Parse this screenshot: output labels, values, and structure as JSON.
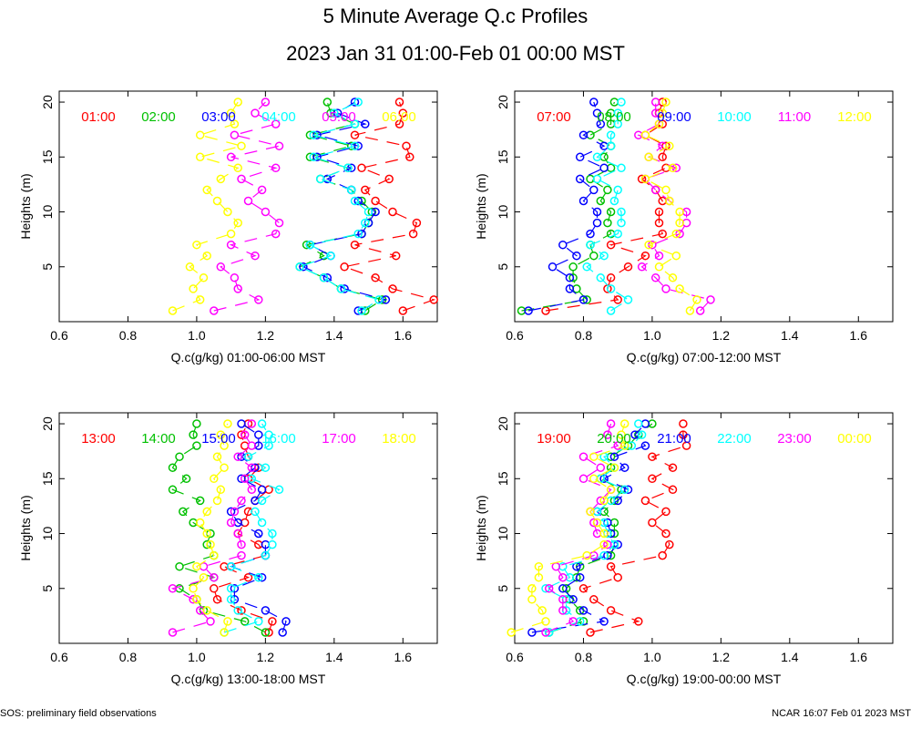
{
  "header": {
    "title": "5 Minute Average Q.c Profiles",
    "subtitle": "2023 Jan 31 01:00-Feb 01 00:00 MST"
  },
  "footer": {
    "left": "SOS: preliminary field observations",
    "right": "NCAR 16:07 Feb 01 2023 MST"
  },
  "colors": [
    "#ff0000",
    "#00c000",
    "#0000ff",
    "#00ffff",
    "#ff00ff",
    "#ffff00"
  ],
  "chart_data": [
    {
      "type": "line",
      "xlabel": "Q.c(g/kg) 01:00-06:00 MST",
      "ylabel": "Heights (m)",
      "xlim": [
        0.6,
        1.7
      ],
      "ylim": [
        0,
        21
      ],
      "xticks": [
        "0.6",
        "0.8",
        "1.0",
        "1.2",
        "1.4",
        "1.6"
      ],
      "yticks": [
        "5",
        "10",
        "15",
        "20"
      ],
      "heights": [
        1,
        2,
        3,
        4,
        5,
        6,
        7,
        8,
        9,
        10,
        11,
        12,
        13,
        14,
        15,
        16,
        17,
        18,
        19,
        20
      ],
      "series": [
        {
          "name": "01:00",
          "values": [
            1.6,
            1.69,
            1.57,
            1.52,
            1.43,
            1.58,
            1.46,
            1.63,
            1.64,
            1.57,
            1.52,
            1.49,
            1.56,
            1.48,
            1.62,
            1.61,
            1.46,
            1.59,
            1.6,
            1.59
          ]
        },
        {
          "name": "02:00",
          "values": [
            1.49,
            1.54,
            1.42,
            1.37,
            1.3,
            1.37,
            1.32,
            1.48,
            1.5,
            1.51,
            1.48,
            1.45,
            1.36,
            1.44,
            1.33,
            1.45,
            1.33,
            1.46,
            1.39,
            1.38
          ]
        },
        {
          "name": "03:00",
          "values": [
            1.47,
            1.55,
            1.43,
            1.38,
            1.31,
            1.39,
            1.33,
            1.48,
            1.5,
            1.52,
            1.47,
            1.45,
            1.38,
            1.45,
            1.35,
            1.47,
            1.35,
            1.49,
            1.41,
            1.46
          ]
        },
        {
          "name": "04:00",
          "values": [
            1.48,
            1.53,
            1.42,
            1.37,
            1.3,
            1.39,
            1.33,
            1.47,
            1.49,
            1.5,
            1.46,
            1.45,
            1.36,
            1.44,
            1.34,
            1.46,
            1.34,
            1.46,
            1.4,
            1.47
          ]
        },
        {
          "name": "05:00",
          "values": [
            1.05,
            1.18,
            1.12,
            1.11,
            1.07,
            1.17,
            1.1,
            1.23,
            1.24,
            1.2,
            1.15,
            1.19,
            1.13,
            1.23,
            1.1,
            1.24,
            1.11,
            1.23,
            1.17,
            1.2
          ]
        },
        {
          "name": "06:00",
          "values": [
            0.93,
            1.01,
            0.99,
            1.02,
            0.98,
            1.03,
            1.0,
            1.1,
            1.12,
            1.09,
            1.06,
            1.03,
            1.07,
            1.12,
            1.01,
            1.13,
            1.01,
            1.11,
            1.1,
            1.12
          ]
        }
      ],
      "legend": [
        "01:00",
        "02:00",
        "03:00",
        "04:00",
        "05:00",
        "06:00"
      ]
    },
    {
      "type": "line",
      "xlabel": "Q.c(g/kg) 07:00-12:00 MST",
      "ylabel": "Heights (m)",
      "xlim": [
        0.6,
        1.7
      ],
      "ylim": [
        0,
        21
      ],
      "xticks": [
        "0.6",
        "0.8",
        "1.0",
        "1.2",
        "1.4",
        "1.6"
      ],
      "yticks": [
        "5",
        "10",
        "15",
        "20"
      ],
      "heights": [
        1,
        2,
        3,
        4,
        5,
        6,
        7,
        8,
        9,
        10,
        11,
        12,
        13,
        14,
        15,
        16,
        17,
        18,
        19,
        20
      ],
      "series": [
        {
          "name": "07:00",
          "values": [
            0.69,
            0.9,
            0.87,
            0.88,
            0.93,
            0.98,
            0.88,
            1.03,
            1.02,
            1.02,
            1.03,
            1.01,
            0.97,
            1.04,
            1.03,
            1.04,
            0.98,
            1.03,
            1.02,
            1.03
          ]
        },
        {
          "name": "08:00",
          "values": [
            0.62,
            0.81,
            0.78,
            0.77,
            0.77,
            0.83,
            0.82,
            0.88,
            0.87,
            0.88,
            0.85,
            0.87,
            0.82,
            0.88,
            0.86,
            0.88,
            0.82,
            0.88,
            0.88,
            0.89
          ]
        },
        {
          "name": "09:00",
          "values": [
            0.64,
            0.8,
            0.76,
            0.76,
            0.71,
            0.78,
            0.74,
            0.82,
            0.84,
            0.84,
            0.8,
            0.83,
            0.79,
            0.86,
            0.79,
            0.86,
            0.8,
            0.85,
            0.84,
            0.83
          ]
        },
        {
          "name": "10:00",
          "values": [
            0.88,
            0.93,
            0.88,
            0.85,
            0.81,
            0.86,
            0.82,
            0.9,
            0.91,
            0.91,
            0.89,
            0.9,
            0.84,
            0.91,
            0.84,
            0.88,
            0.88,
            0.9,
            0.9,
            0.91
          ]
        },
        {
          "name": "11:00",
          "values": [
            1.14,
            1.17,
            1.04,
            1.01,
            0.97,
            1.02,
            1.0,
            1.08,
            1.1,
            1.1,
            1.05,
            1.01,
            0.98,
            1.07,
            0.99,
            1.03,
            0.96,
            1.02,
            1.01,
            1.01
          ]
        },
        {
          "name": "12:00",
          "values": [
            1.11,
            1.13,
            1.08,
            1.06,
            1.02,
            1.07,
            0.99,
            1.07,
            1.08,
            1.08,
            1.05,
            1.04,
            0.98,
            1.06,
            0.99,
            1.05,
            0.98,
            1.02,
            1.03,
            1.04
          ]
        }
      ],
      "legend": [
        "07:00",
        "08:00",
        "09:00",
        "10:00",
        "11:00",
        "12:00"
      ]
    },
    {
      "type": "line",
      "xlabel": "Q.c(g/kg) 13:00-18:00 MST",
      "ylabel": "Heights (m)",
      "xlim": [
        0.6,
        1.7
      ],
      "ylim": [
        0,
        21
      ],
      "xticks": [
        "0.6",
        "0.8",
        "1.0",
        "1.2",
        "1.4",
        "1.6"
      ],
      "yticks": [
        "5",
        "10",
        "15",
        "20"
      ],
      "heights": [
        1,
        2,
        3,
        4,
        5,
        6,
        7,
        8,
        9,
        10,
        11,
        12,
        13,
        14,
        15,
        16,
        17,
        18,
        19,
        20
      ],
      "series": [
        {
          "name": "13:00",
          "values": [
            1.21,
            1.22,
            1.13,
            1.06,
            1.05,
            1.15,
            1.08,
            1.2,
            1.18,
            1.12,
            1.14,
            1.15,
            1.17,
            1.21,
            1.15,
            1.18,
            1.15,
            1.14,
            1.13,
            1.15
          ]
        },
        {
          "name": "14:00",
          "values": [
            1.2,
            1.14,
            1.02,
            1.0,
            0.95,
            1.05,
            0.95,
            1.05,
            1.03,
            1.04,
            0.99,
            0.96,
            1.01,
            0.93,
            0.97,
            0.93,
            0.95,
            1.0,
            0.99,
            1.0
          ]
        },
        {
          "name": "15:00",
          "values": [
            1.25,
            1.26,
            1.2,
            1.11,
            1.11,
            1.19,
            1.1,
            1.2,
            1.2,
            1.18,
            1.12,
            1.1,
            1.17,
            1.19,
            1.13,
            1.17,
            1.13,
            1.18,
            1.18,
            1.13
          ]
        },
        {
          "name": "16:00",
          "values": [
            1.08,
            1.18,
            1.12,
            1.1,
            1.1,
            1.18,
            1.1,
            1.2,
            1.22,
            1.22,
            1.19,
            1.17,
            1.19,
            1.24,
            1.16,
            1.2,
            1.15,
            1.21,
            1.21,
            1.19
          ]
        },
        {
          "name": "17:00",
          "values": [
            0.93,
            1.04,
            1.01,
            0.99,
            0.93,
            1.05,
            1.02,
            1.13,
            1.13,
            1.12,
            1.1,
            1.11,
            1.13,
            1.16,
            1.14,
            1.16,
            1.12,
            1.16,
            1.14,
            1.16
          ]
        },
        {
          "name": "18:00",
          "values": [
            1.08,
            1.09,
            1.03,
            1.0,
            0.99,
            1.02,
            1.0,
            1.05,
            1.04,
            1.03,
            1.01,
            1.03,
            1.06,
            1.07,
            1.05,
            1.08,
            1.06,
            1.08,
            1.07,
            1.09
          ]
        }
      ],
      "legend": [
        "13:00",
        "14:00",
        "15:00",
        "16:00",
        "17:00",
        "18:00"
      ]
    },
    {
      "type": "line",
      "xlabel": "Q.c(g/kg) 19:00-00:00 MST",
      "ylabel": "Heights (m)",
      "xlim": [
        0.6,
        1.7
      ],
      "ylim": [
        0,
        21
      ],
      "xticks": [
        "0.6",
        "0.8",
        "1.0",
        "1.2",
        "1.4",
        "1.6"
      ],
      "yticks": [
        "5",
        "10",
        "15",
        "20"
      ],
      "heights": [
        1,
        2,
        3,
        4,
        5,
        6,
        7,
        8,
        9,
        10,
        11,
        12,
        13,
        14,
        15,
        16,
        17,
        18,
        19,
        20
      ],
      "series": [
        {
          "name": "19:00",
          "values": [
            0.82,
            0.96,
            0.88,
            0.83,
            0.8,
            0.9,
            0.88,
            1.03,
            1.05,
            1.04,
            1.0,
            1.04,
            0.98,
            1.06,
            1.0,
            1.06,
            1.0,
            1.1,
            1.09,
            1.09
          ]
        },
        {
          "name": "20:00",
          "values": [
            0.7,
            0.8,
            0.79,
            0.76,
            0.75,
            0.78,
            0.79,
            0.88,
            0.89,
            0.89,
            0.89,
            0.86,
            0.89,
            0.91,
            0.85,
            0.88,
            0.88,
            0.93,
            0.96,
            1.0
          ]
        },
        {
          "name": "21:00",
          "values": [
            0.65,
            0.86,
            0.8,
            0.77,
            0.74,
            0.79,
            0.78,
            0.87,
            0.9,
            0.88,
            0.87,
            0.84,
            0.9,
            0.93,
            0.86,
            0.92,
            0.89,
            0.98,
            0.95,
            0.98
          ]
        },
        {
          "name": "22:00",
          "values": [
            0.7,
            0.79,
            0.75,
            0.75,
            0.69,
            0.76,
            0.74,
            0.86,
            0.89,
            0.87,
            0.86,
            0.84,
            0.88,
            0.92,
            0.85,
            0.89,
            0.86,
            0.94,
            0.97,
            0.96
          ]
        },
        {
          "name": "23:00",
          "values": [
            0.69,
            0.77,
            0.74,
            0.74,
            0.7,
            0.74,
            0.72,
            0.83,
            0.87,
            0.84,
            0.83,
            0.82,
            0.85,
            0.88,
            0.8,
            0.85,
            0.8,
            0.9,
            0.87,
            0.88
          ]
        },
        {
          "name": "00:00",
          "values": [
            0.59,
            0.69,
            0.68,
            0.65,
            0.65,
            0.67,
            0.67,
            0.81,
            0.86,
            0.86,
            0.84,
            0.82,
            0.86,
            0.88,
            0.83,
            0.89,
            0.83,
            0.92,
            0.91,
            0.92
          ]
        }
      ],
      "legend": [
        "19:00",
        "20:00",
        "21:00",
        "22:00",
        "23:00",
        "00:00"
      ]
    }
  ]
}
